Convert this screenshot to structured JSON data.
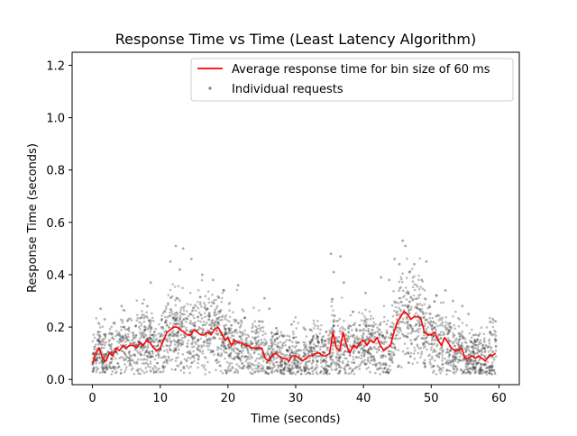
{
  "chart_data": {
    "type": "line",
    "title": "Response Time vs Time (Least Latency Algorithm)",
    "xlabel": "Time (seconds)",
    "ylabel": "Response Time (seconds)",
    "xlim": [
      -3,
      63
    ],
    "ylim": [
      -0.02,
      1.25
    ],
    "xticks": [
      0,
      10,
      20,
      30,
      40,
      50,
      60
    ],
    "yticks": [
      0.0,
      0.2,
      0.4,
      0.6,
      0.8,
      1.0,
      1.2
    ],
    "xtick_labels": [
      "0",
      "10",
      "20",
      "30",
      "40",
      "50",
      "60"
    ],
    "ytick_labels": [
      "0.0",
      "0.2",
      "0.4",
      "0.6",
      "0.8",
      "1.0",
      "1.2"
    ],
    "grid": false,
    "legend_position": "top-right",
    "legend": [
      {
        "label": "Average response time for bin size of 60 ms",
        "color": "#ff0000",
        "kind": "line"
      },
      {
        "label": "Individual requests",
        "color": "#808080",
        "kind": "marker"
      }
    ],
    "series": [
      {
        "name": "Average response time for bin size of 60 ms",
        "kind": "line",
        "color": "#ff0000",
        "x": [
          0,
          0.5,
          1,
          1.5,
          2,
          2.5,
          3,
          3.5,
          4,
          4.5,
          5,
          5.5,
          6,
          6.5,
          7,
          7.5,
          8,
          8.5,
          9,
          9.5,
          10,
          10.5,
          11,
          11.5,
          12,
          12.5,
          13,
          13.5,
          14,
          14.5,
          15,
          15.5,
          16,
          16.5,
          17,
          17.5,
          18,
          18.5,
          19,
          19.5,
          20,
          20.5,
          21,
          21.5,
          22,
          22.5,
          23,
          23.5,
          24,
          24.5,
          25,
          25.5,
          26,
          26.5,
          27,
          27.5,
          28,
          28.5,
          29,
          29.5,
          30,
          30.5,
          31,
          31.5,
          32,
          32.5,
          33,
          33.5,
          34,
          34.5,
          35,
          35.5,
          36,
          36.5,
          37,
          37.5,
          38,
          38.5,
          39,
          39.5,
          40,
          40.5,
          41,
          41.5,
          42,
          42.5,
          43,
          43.5,
          44,
          44.5,
          45,
          45.5,
          46,
          46.5,
          47,
          47.5,
          48,
          48.5,
          49,
          49.5,
          50,
          50.5,
          51,
          51.5,
          52,
          52.5,
          53,
          53.5,
          54,
          54.5,
          55,
          55.5,
          56,
          56.5,
          57,
          57.5,
          58,
          58.5,
          59,
          59.5
        ],
        "y": [
          0.06,
          0.1,
          0.12,
          0.08,
          0.07,
          0.1,
          0.09,
          0.12,
          0.11,
          0.13,
          0.12,
          0.13,
          0.13,
          0.12,
          0.14,
          0.13,
          0.15,
          0.14,
          0.12,
          0.11,
          0.12,
          0.15,
          0.18,
          0.19,
          0.2,
          0.2,
          0.19,
          0.18,
          0.17,
          0.17,
          0.19,
          0.18,
          0.17,
          0.17,
          0.18,
          0.17,
          0.19,
          0.2,
          0.18,
          0.15,
          0.16,
          0.13,
          0.15,
          0.14,
          0.14,
          0.13,
          0.13,
          0.12,
          0.12,
          0.12,
          0.12,
          0.08,
          0.07,
          0.09,
          0.1,
          0.09,
          0.08,
          0.08,
          0.07,
          0.09,
          0.09,
          0.08,
          0.07,
          0.08,
          0.09,
          0.09,
          0.1,
          0.1,
          0.09,
          0.09,
          0.1,
          0.18,
          0.12,
          0.11,
          0.18,
          0.13,
          0.1,
          0.13,
          0.12,
          0.14,
          0.15,
          0.13,
          0.15,
          0.14,
          0.16,
          0.13,
          0.11,
          0.12,
          0.13,
          0.18,
          0.22,
          0.24,
          0.26,
          0.25,
          0.23,
          0.24,
          0.24,
          0.23,
          0.18,
          0.17,
          0.17,
          0.18,
          0.15,
          0.13,
          0.16,
          0.14,
          0.12,
          0.11,
          0.11,
          0.12,
          0.08,
          0.08,
          0.09,
          0.08,
          0.09,
          0.08,
          0.07,
          0.09,
          0.09,
          0.1
        ]
      },
      {
        "name": "Individual requests",
        "kind": "scatter",
        "color": "#404040",
        "x": [
          1.2,
          1.8,
          4.3,
          7.4,
          8.1,
          8.6,
          11.5,
          12.3,
          12.9,
          13.4,
          14.6,
          16.2,
          17.8,
          19.4,
          21.5,
          25.4,
          26.1,
          29.4,
          35.2,
          35.6,
          36.6,
          37.1,
          40.3,
          42.6,
          43.8,
          44.6,
          45.3,
          45.8,
          46.2,
          46.8,
          47.5,
          48.6,
          49.3,
          50.8,
          52.1,
          53.2,
          54.6,
          55.5,
          58.7,
          59.1
        ],
        "y": [
          0.27,
          0.23,
          0.28,
          0.29,
          0.28,
          0.37,
          0.45,
          0.51,
          0.42,
          0.5,
          0.46,
          0.4,
          0.38,
          0.34,
          0.36,
          0.31,
          0.27,
          0.21,
          0.48,
          0.41,
          0.47,
          0.37,
          0.33,
          0.39,
          0.38,
          0.46,
          0.44,
          0.53,
          0.51,
          0.41,
          0.44,
          0.38,
          0.45,
          0.32,
          0.34,
          0.3,
          0.28,
          0.25,
          0.22,
          0.23
        ]
      }
    ]
  }
}
